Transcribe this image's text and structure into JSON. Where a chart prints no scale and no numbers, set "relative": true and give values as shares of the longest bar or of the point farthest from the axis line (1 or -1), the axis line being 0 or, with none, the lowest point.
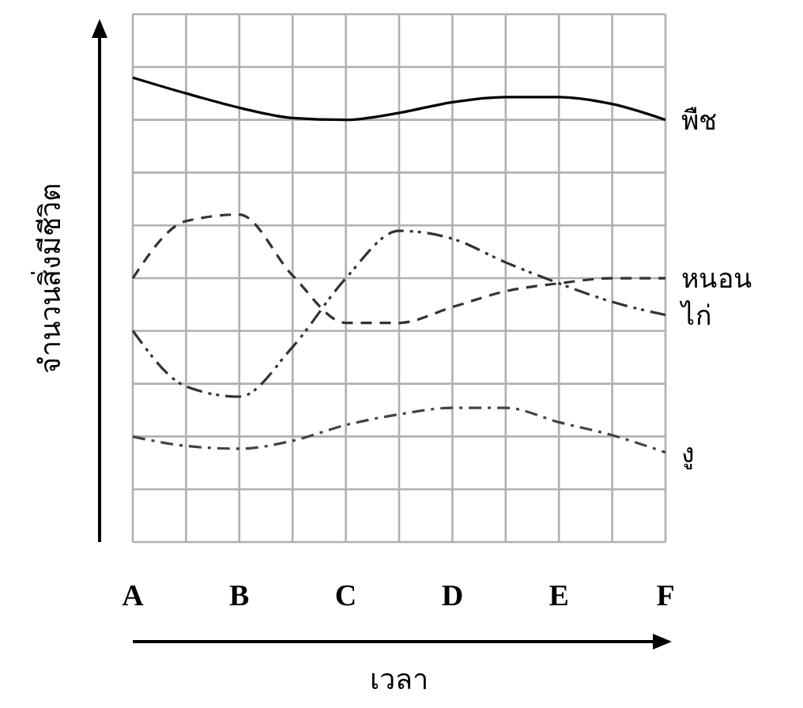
{
  "chart_data": {
    "type": "line",
    "relative": true,
    "xlabel": "เวลา",
    "ylabel": "จำนวนสิ่งมีชีวิต",
    "categories": [
      "A",
      null,
      "B",
      null,
      "C",
      null,
      "D",
      null,
      "E",
      null,
      "F"
    ],
    "grid": true,
    "marker": "none",
    "series": [
      {
        "name": "พืช",
        "color": "#000000",
        "line_style": "solid",
        "values": [
          1,
          0.966,
          0.935,
          0.913,
          0.909,
          0.924,
          0.947,
          0.958,
          0.958,
          0.943,
          0.909
        ]
      },
      {
        "name": "หนอน",
        "color": "#333333",
        "line_style": "dashed",
        "values": [
          0.568,
          0.691,
          0.705,
          0.574,
          0.472,
          0.472,
          0.506,
          0.54,
          0.557,
          0.568,
          0.568
        ]
      },
      {
        "name": "ไก่",
        "color": "#333333",
        "line_style": "dashdotdot",
        "values": [
          0.455,
          0.335,
          0.313,
          0.42,
          0.568,
          0.67,
          0.653,
          0.602,
          0.557,
          0.517,
          0.489
        ]
      },
      {
        "name": "งู",
        "color": "#444444",
        "line_style": "dashdot",
        "values": [
          0.227,
          0.207,
          0.201,
          0.218,
          0.252,
          0.275,
          0.289,
          0.289,
          0.258,
          0.23,
          0.193
        ]
      }
    ]
  }
}
